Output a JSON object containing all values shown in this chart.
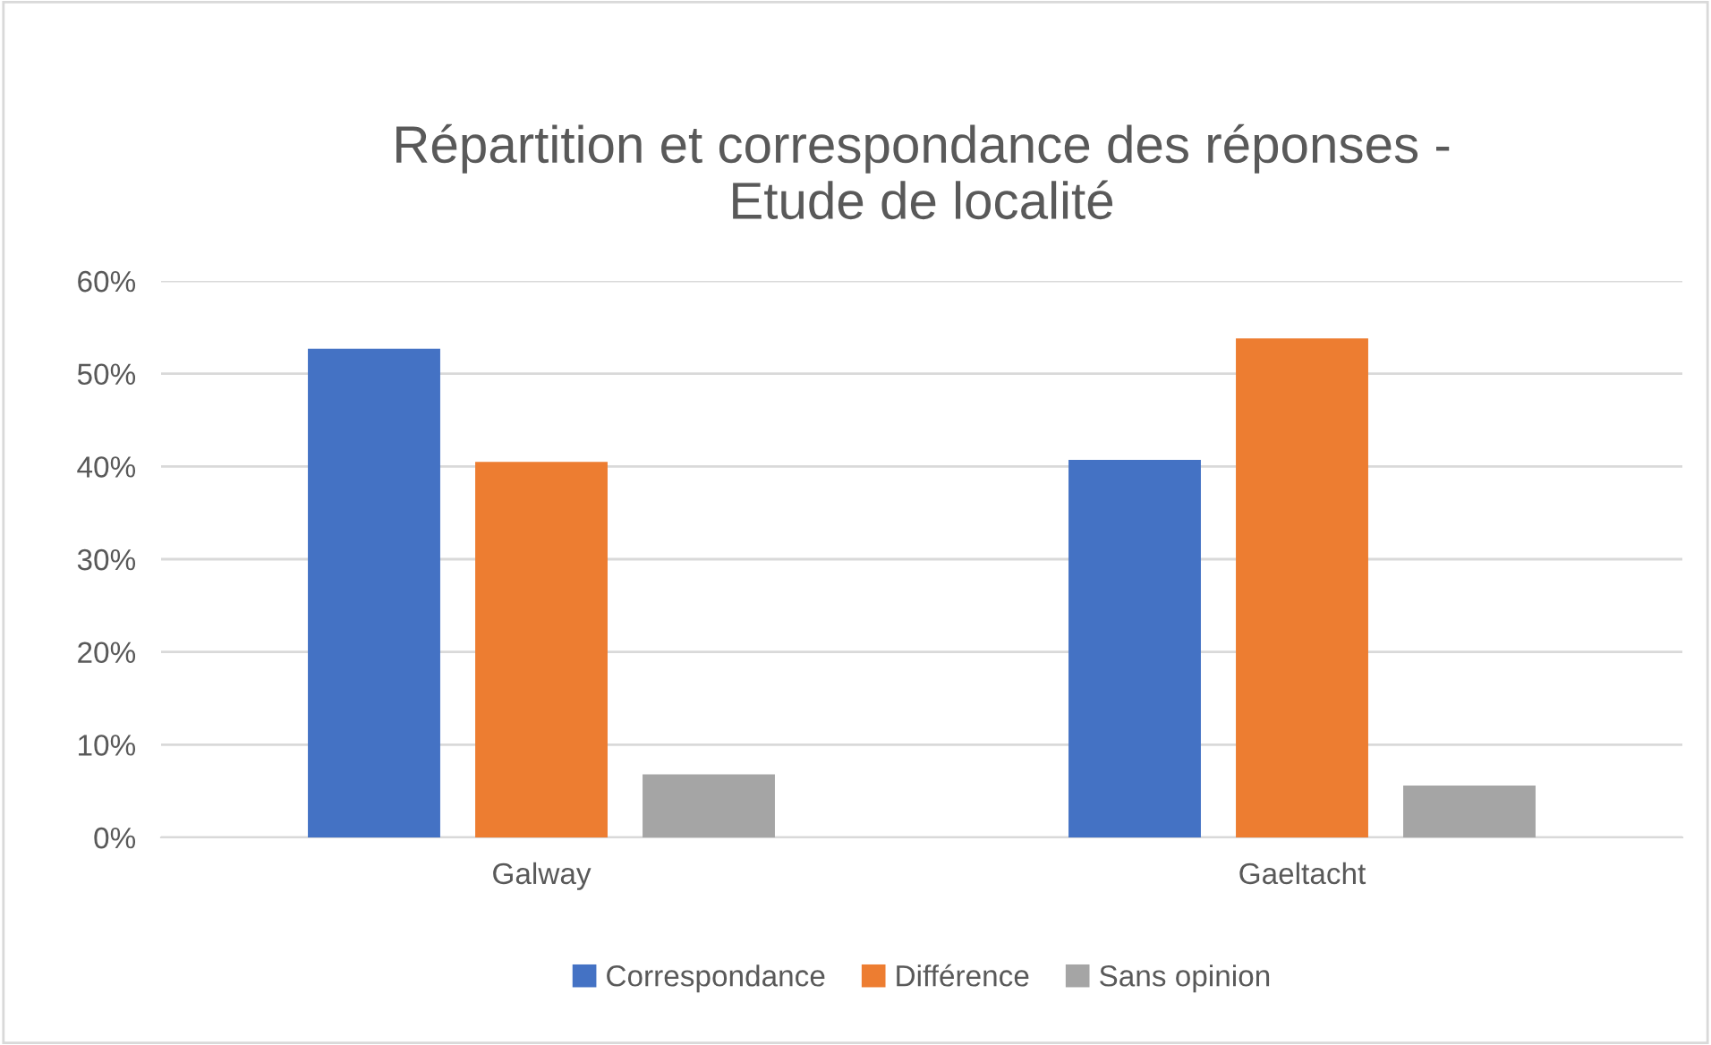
{
  "chart_data": {
    "type": "bar",
    "title": "Répartition et correspondance des réponses -\nEtude de localité",
    "categories": [
      "Galway",
      "Gaeltacht"
    ],
    "series": [
      {
        "name": "Correspondance",
        "color": "#4472c4",
        "values": [
          52.7,
          40.7
        ]
      },
      {
        "name": "Différence",
        "color": "#ed7d31",
        "values": [
          40.5,
          53.8
        ]
      },
      {
        "name": "Sans opinion",
        "color": "#a5a5a5",
        "values": [
          6.8,
          5.6
        ]
      }
    ],
    "ylim": [
      0,
      60
    ],
    "yticks": [
      {
        "value": 0,
        "label": "0%"
      },
      {
        "value": 10,
        "label": "10%"
      },
      {
        "value": 20,
        "label": "20%"
      },
      {
        "value": 30,
        "label": "30%"
      },
      {
        "value": 40,
        "label": "40%"
      },
      {
        "value": 50,
        "label": "50%"
      },
      {
        "value": 60,
        "label": "60%"
      }
    ],
    "grid": "y",
    "legend": "bottom"
  }
}
